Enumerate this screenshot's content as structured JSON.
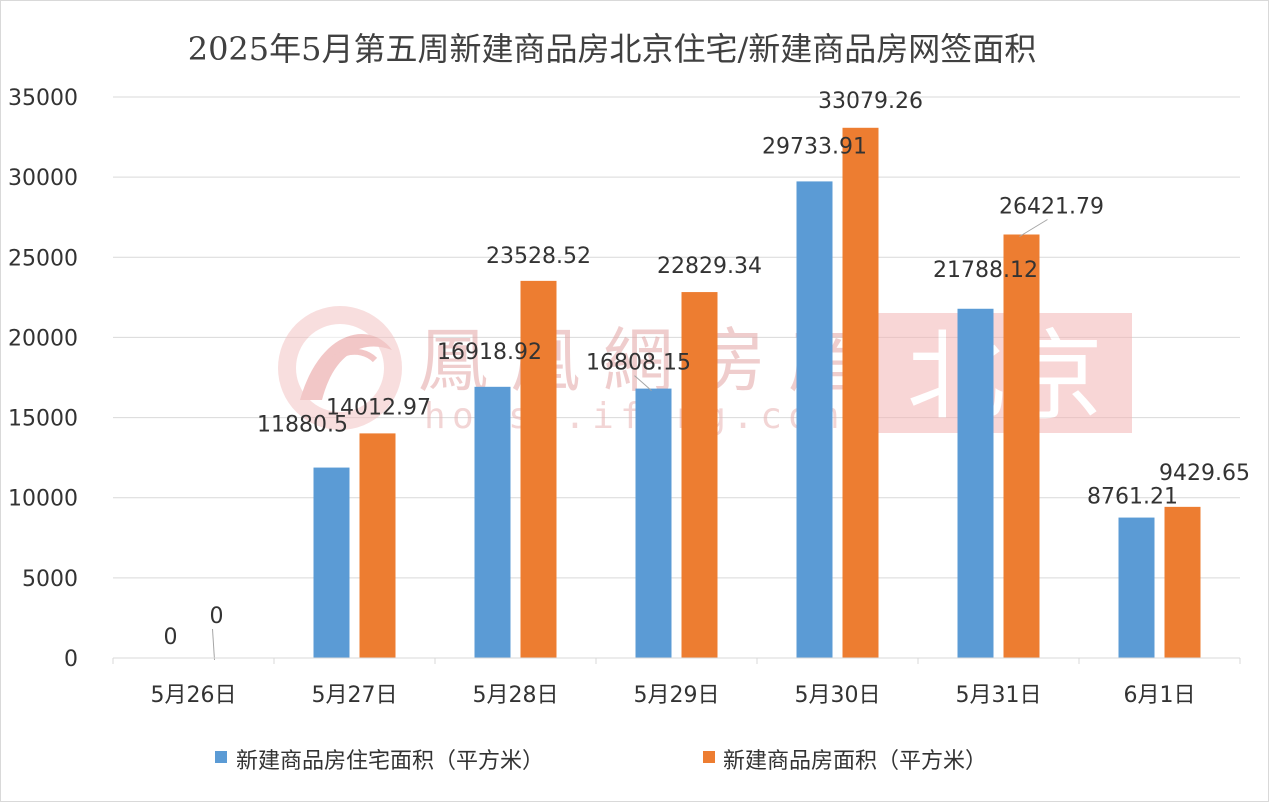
{
  "watermark": {
    "brand_text": "鳳凰網房産",
    "url_text": "house.ifeng.com",
    "city_text": "北京",
    "logo_icon": "phoenix-logo-icon",
    "color": "#e8a2a2"
  },
  "chart_data": {
    "type": "bar",
    "title": "2025年5月第五周新建商品房北京住宅/新建商品房网签面积",
    "xlabel": "",
    "ylabel": "",
    "categories": [
      "5月26日",
      "5月27日",
      "5月28日",
      "5月29日",
      "5月30日",
      "5月31日",
      "6月1日"
    ],
    "series": [
      {
        "name": "新建商品房住宅面积（平方米）",
        "color": "#5b9bd5",
        "values": [
          0,
          11880.5,
          16918.92,
          16808.15,
          29733.91,
          21788.12,
          8761.21
        ],
        "labels": [
          "0",
          "11880.5",
          "16918.92",
          "16808.15",
          "29733.91",
          "21788.12",
          "8761.21"
        ]
      },
      {
        "name": "新建商品房面积（平方米）",
        "color": "#ed7d31",
        "values": [
          0,
          14012.97,
          23528.52,
          22829.34,
          33079.26,
          26421.79,
          9429.65
        ],
        "labels": [
          "0",
          "14012.97",
          "23528.52",
          "22829.34",
          "33079.26",
          "26421.79",
          "9429.65"
        ]
      }
    ],
    "ylim": [
      0,
      35000
    ],
    "yticks": [
      0,
      5000,
      10000,
      15000,
      20000,
      25000,
      30000,
      35000
    ],
    "grid": true,
    "legend_position": "bottom"
  }
}
